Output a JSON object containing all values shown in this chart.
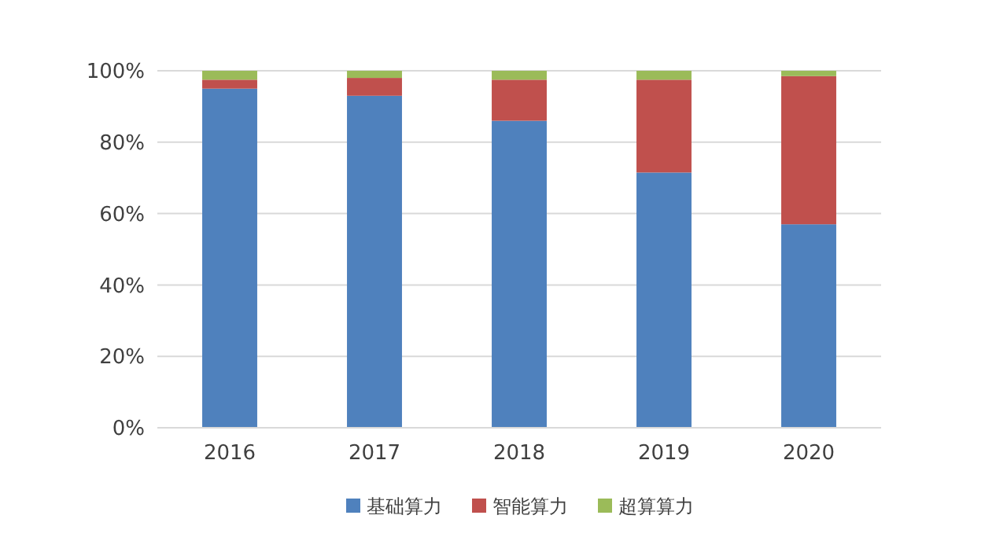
{
  "chart_data": {
    "type": "bar",
    "stacked": true,
    "categories": [
      "2016",
      "2017",
      "2018",
      "2019",
      "2020"
    ],
    "series": [
      {
        "name": "基础算力",
        "color": "#4f81bd",
        "values": [
          95,
          93,
          86,
          71.5,
          57
        ]
      },
      {
        "name": "智能算力",
        "color": "#c0504d",
        "values": [
          2.5,
          5,
          11.5,
          26,
          41.5
        ]
      },
      {
        "name": "超算算力",
        "color": "#9bbb59",
        "values": [
          2.5,
          2,
          2.5,
          2.5,
          1.5
        ]
      }
    ],
    "ylim": [
      0,
      100
    ],
    "yticks": [
      {
        "value": 0,
        "label": "0%"
      },
      {
        "value": 20,
        "label": "20%"
      },
      {
        "value": 40,
        "label": "40%"
      },
      {
        "value": 60,
        "label": "60%"
      },
      {
        "value": 80,
        "label": "80%"
      },
      {
        "value": 100,
        "label": "100%"
      }
    ],
    "grid": "y",
    "legend": "bottom"
  }
}
